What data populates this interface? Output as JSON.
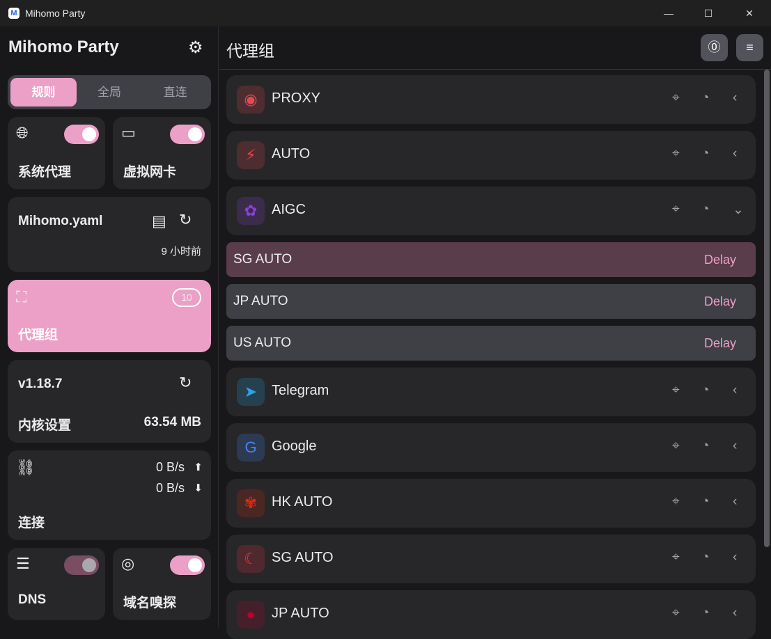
{
  "window": {
    "title": "Mihomo Party",
    "minimize": "—",
    "maximize": "☐",
    "close": "✕"
  },
  "sidebar": {
    "app_title": "Mihomo Party",
    "modes": [
      "规则",
      "全局",
      "直连"
    ],
    "sysproxy": {
      "label": "系统代理",
      "enabled": true
    },
    "tun": {
      "label": "虚拟网卡",
      "enabled": true
    },
    "profile": {
      "name": "Mihomo.yaml",
      "updated": "9 小时前"
    },
    "proxy_groups": {
      "label": "代理组",
      "count": "10"
    },
    "core": {
      "version": "v1.18.7",
      "label": "内核设置",
      "memory": "63.54 MB"
    },
    "connections": {
      "label": "连接",
      "upload": "0 B/s",
      "download": "0 B/s"
    },
    "dns": {
      "label": "DNS",
      "enabled": false
    },
    "sniff": {
      "label": "域名嗅探",
      "enabled": true
    }
  },
  "main": {
    "title": "代理组",
    "groups_top": [
      {
        "name": "PROXY",
        "icon": "◉",
        "color": "#e5484d"
      },
      {
        "name": "AUTO",
        "icon": "⚡",
        "color": "#e5484d"
      },
      {
        "name": "AIGC",
        "icon": "✿",
        "color": "#8b3fd9"
      }
    ],
    "expanded": [
      {
        "name": "SG AUTO",
        "delay": "Delay"
      },
      {
        "name": "JP AUTO",
        "delay": "Delay"
      },
      {
        "name": "US AUTO",
        "delay": "Delay"
      }
    ],
    "groups_bottom": [
      {
        "name": "Telegram",
        "icon": "➤",
        "color": "#2aa3e8"
      },
      {
        "name": "Google",
        "icon": "G",
        "color": "#4285f4"
      },
      {
        "name": "HK AUTO",
        "icon": "✾",
        "color": "#de2910"
      },
      {
        "name": "SG AUTO",
        "icon": "☾",
        "color": "#ef3340"
      },
      {
        "name": "JP AUTO",
        "icon": "●",
        "color": "#bc002d"
      }
    ]
  },
  "colors": {
    "accent": "#eca0c7"
  }
}
